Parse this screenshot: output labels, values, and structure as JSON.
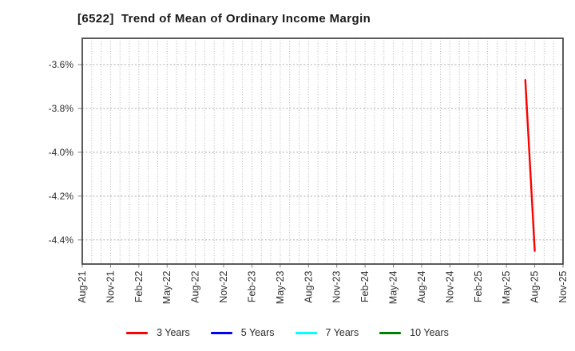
{
  "chart_data": {
    "type": "line",
    "title": "[6522]  Trend of Mean of Ordinary Income Margin",
    "x_axis": {
      "unit": "month",
      "total_months": 51,
      "ticks": [
        {
          "label": "Aug-21",
          "month": 0
        },
        {
          "label": "Nov-21",
          "month": 3
        },
        {
          "label": "Feb-22",
          "month": 6
        },
        {
          "label": "May-22",
          "month": 9
        },
        {
          "label": "Aug-22",
          "month": 12
        },
        {
          "label": "Nov-22",
          "month": 15
        },
        {
          "label": "Feb-23",
          "month": 18
        },
        {
          "label": "May-23",
          "month": 21
        },
        {
          "label": "Aug-23",
          "month": 24
        },
        {
          "label": "Nov-23",
          "month": 27
        },
        {
          "label": "Feb-24",
          "month": 30
        },
        {
          "label": "May-24",
          "month": 33
        },
        {
          "label": "Aug-24",
          "month": 36
        },
        {
          "label": "Nov-24",
          "month": 39
        },
        {
          "label": "Feb-25",
          "month": 42
        },
        {
          "label": "May-25",
          "month": 45
        },
        {
          "label": "Aug-25",
          "month": 48
        },
        {
          "label": "Nov-25",
          "month": 51
        }
      ]
    },
    "y_axis": {
      "unit": "%",
      "ylim": [
        -4.51,
        -3.48
      ],
      "ticks": [
        {
          "label": "-3.6%",
          "value": -3.6
        },
        {
          "label": "-3.8%",
          "value": -3.8
        },
        {
          "label": "-4.0%",
          "value": -4.0
        },
        {
          "label": "-4.2%",
          "value": -4.2
        },
        {
          "label": "-4.4%",
          "value": -4.4
        }
      ]
    },
    "series": [
      {
        "name": "3 Years",
        "color": "#ff0000",
        "points": [
          {
            "month": 47,
            "period": "Jul-25",
            "value": -3.67
          },
          {
            "month": 48,
            "period": "Aug-25",
            "value": -4.45
          }
        ]
      },
      {
        "name": "5 Years",
        "color": "#0000ff",
        "points": []
      },
      {
        "name": "7 Years",
        "color": "#00ffff",
        "points": []
      },
      {
        "name": "10 Years",
        "color": "#008000",
        "points": []
      }
    ],
    "legend": {
      "position": "bottom",
      "entries": [
        "3 Years",
        "5 Years",
        "7 Years",
        "10 Years"
      ]
    },
    "grid": {
      "show": true,
      "style": "dotted",
      "vertical_color": "#b3b3b3",
      "horizontal_color": "#ababab"
    },
    "axis_style": {
      "spine_color": "#404040",
      "tick_color": "#808080",
      "tick_label_color": "#303030"
    }
  }
}
